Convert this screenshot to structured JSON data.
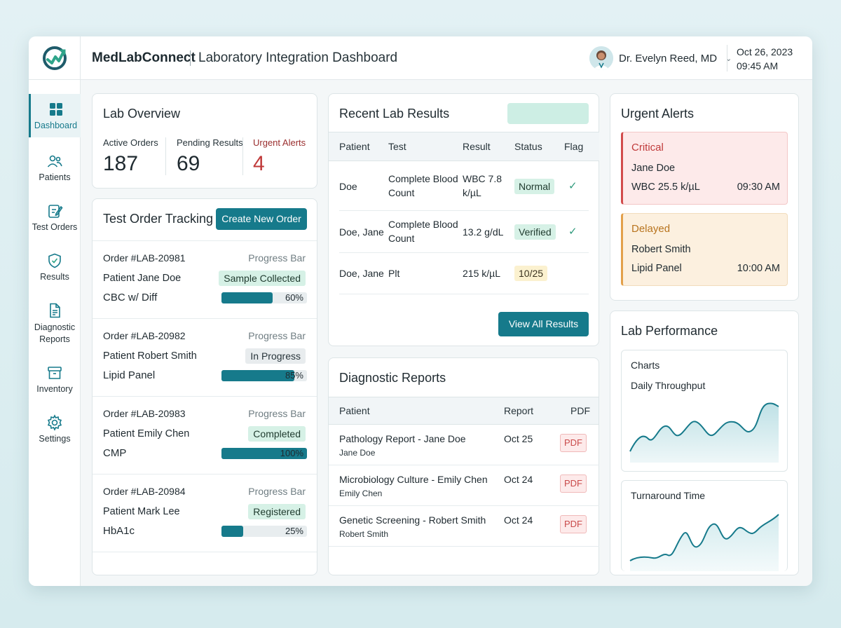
{
  "header": {
    "brand": "MedLabConnect",
    "subtitle": "Laboratory Integration Dashboard",
    "user_name": "Dr. Evelyn Reed, MD",
    "date": "Oct 26, 2023",
    "time": "09:45 AM"
  },
  "sidebar": {
    "items": [
      {
        "label": "Dashboard",
        "icon": "grid-icon",
        "active": true
      },
      {
        "label": "Patients",
        "icon": "users-icon"
      },
      {
        "label": "Test Orders",
        "icon": "clipboard-edit-icon"
      },
      {
        "label": "Results",
        "icon": "shield-icon"
      },
      {
        "label": "Diagnostic Reports",
        "icon": "document-icon"
      },
      {
        "label": "Inventory",
        "icon": "box-icon"
      },
      {
        "label": "Settings",
        "icon": "gear-icon"
      }
    ]
  },
  "overview": {
    "title": "Lab Overview",
    "active_label": "Active Orders",
    "active_value": "187",
    "pending_label": "Pending Results",
    "pending_value": "69",
    "alerts_label": "Urgent Alerts",
    "alerts_value": "4"
  },
  "orders": {
    "title": "Test Order Tracking",
    "create_label": "Create New Order",
    "items": [
      {
        "id": "Order #LAB-20981",
        "bar_label": "Progress Bar",
        "patient": "Patient Jane Doe",
        "status": "Sample Collected",
        "test": "CBC w/ Diff",
        "progress": 60,
        "progress_text": "60%"
      },
      {
        "id": "Order #LAB-20982",
        "bar_label": "Progress Bar",
        "patient": "Patient Robert Smith",
        "status": "In Progress",
        "test": "Lipid Panel",
        "progress": 85,
        "progress_text": "85%"
      },
      {
        "id": "Order #LAB-20983",
        "bar_label": "Progress Bar",
        "patient": "Patient Emily Chen",
        "status": "Completed",
        "test": "CMP",
        "progress": 100,
        "progress_text": "100%"
      },
      {
        "id": "Order #LAB-20984",
        "bar_label": "Progress Bar",
        "patient": "Patient Mark Lee",
        "status": "Registered",
        "test": "HbA1c",
        "progress": 25,
        "progress_text": "25%"
      }
    ]
  },
  "results": {
    "title": "Recent Lab Results",
    "columns": {
      "patient": "Patient",
      "test": "Test",
      "result": "Result",
      "status": "Status",
      "flag": "Flag"
    },
    "rows": [
      {
        "patient": "Doe",
        "test": "Complete Blood Count",
        "result": "WBC 7.8 k/µL",
        "status": "Normal",
        "flag": "✓"
      },
      {
        "patient": "Doe, Jane",
        "test": "Complete Blood Count",
        "result": "13.2 g/dL",
        "status": "Verified",
        "flag": "✓"
      },
      {
        "patient": "Doe, Jane",
        "test": "Plt",
        "result": "215 k/µL",
        "status": "10/25",
        "flag": ""
      }
    ],
    "view_all_label": "View All Results"
  },
  "reports": {
    "title": "Diagnostic Reports",
    "columns": {
      "patient": "Patient",
      "report": "Report",
      "pdf": "PDF"
    },
    "rows": [
      {
        "name": "Pathology Report - Jane Doe",
        "patient": "Jane Doe",
        "date": "Oct 25",
        "pdf": "PDF"
      },
      {
        "name": "Microbiology Culture - Emily Chen",
        "patient": "Emily Chen",
        "date": "Oct 24",
        "pdf": "PDF"
      },
      {
        "name": "Genetic Screening - Robert Smith",
        "patient": "Robert Smith",
        "date": "Oct 24",
        "pdf": "PDF"
      }
    ]
  },
  "alerts": {
    "title": "Urgent Alerts",
    "items": [
      {
        "kind": "Critical",
        "patient": "Jane Doe",
        "test": "WBC 25.5 k/µL",
        "time": "09:30 AM",
        "color": "#c03a3a"
      },
      {
        "kind": "Delayed",
        "patient": "Robert Smith",
        "test": "Lipid Panel",
        "time": "10:00 AM",
        "color": "#b8741e"
      }
    ]
  },
  "performance": {
    "title": "Lab Performance",
    "charts_label": "Charts",
    "throughput_label": "Daily Throughput",
    "turnaround_label": "Turnaround Time"
  },
  "colors": {
    "accent": "#167a8b",
    "critical": "#d24b4b",
    "delayed": "#e3a04a"
  }
}
